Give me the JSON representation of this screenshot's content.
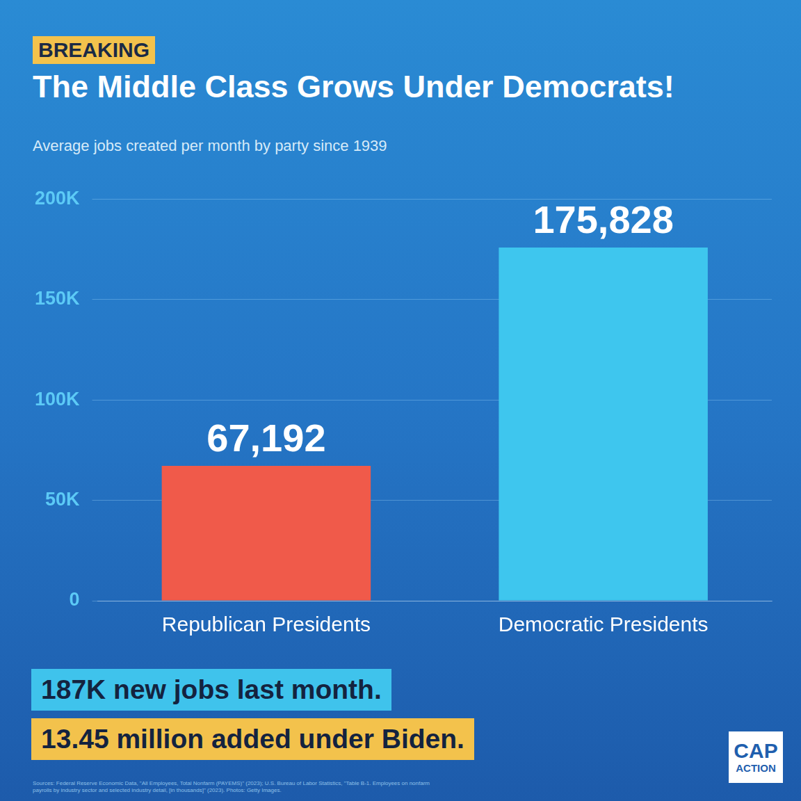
{
  "chart_data": {
    "type": "bar",
    "tag": "BREAKING",
    "title": "The Middle Class Grows Under Democrats!",
    "subtitle": "Average jobs created per month by party since 1939",
    "categories": [
      "Republican Presidents",
      "Democratic Presidents"
    ],
    "values": [
      67192,
      175828
    ],
    "value_labels": [
      "67,192",
      "175,828"
    ],
    "colors": [
      "#f05a4a",
      "#3ec6ee"
    ],
    "ylim": [
      0,
      200000
    ],
    "yticks": [
      0,
      {
        "value": 50000,
        "label": "50K"
      },
      {
        "value": 100000,
        "label": "100K"
      },
      {
        "value": 150000,
        "label": "150K"
      },
      {
        "value": 200000,
        "label": "200K"
      }
    ],
    "grid": true,
    "data_labels": true,
    "annotations": [
      "187K new jobs last month.",
      "13.45 million added under Biden."
    ],
    "source": "Sources: Federal Reserve Economic Data, \"All Employees, Total Nonfarm (PAYEMS)\" (2023); U.S. Bureau of Labor Statistics, \"Table B-1. Employees on nonfarm payrolls by industry sector and selected industry detail, [in thousands]\" (2023). Photos: Getty Images.",
    "logo": "CAP ACTION"
  }
}
